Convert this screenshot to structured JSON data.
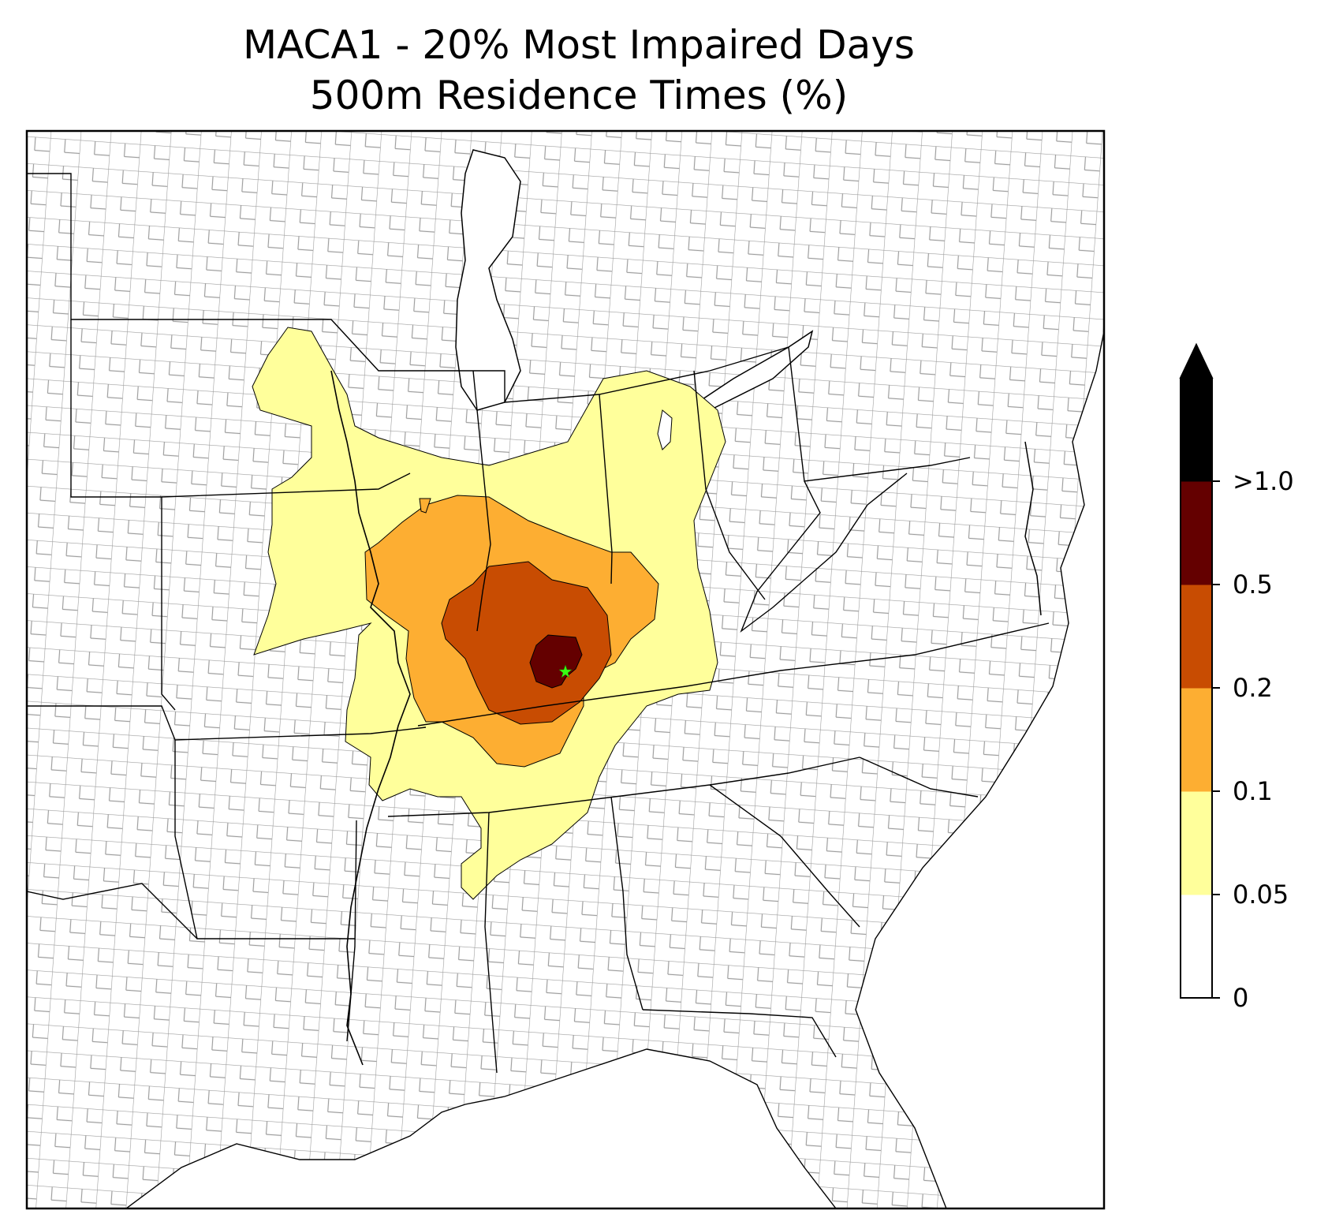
{
  "title": {
    "line1": "MACA1 - 20% Most Impaired Days",
    "line2": "500m Residence Times (%)"
  },
  "map": {
    "region": "Eastern United States with state and county boundaries",
    "source_marker": {
      "shape": "star",
      "color": "#39ff14"
    },
    "state_line_color": "#000000",
    "county_line_color": "#9e9e9e"
  },
  "colorbar": {
    "extend": "max",
    "levels": [
      {
        "label": "0",
        "value": 0
      },
      {
        "label": "0.05",
        "value": 0.05
      },
      {
        "label": "0.1",
        "value": 0.1
      },
      {
        "label": "0.2",
        "value": 0.2
      },
      {
        "label": "0.5",
        "value": 0.5
      },
      {
        "label": ">1.0",
        "value": 1.0
      }
    ],
    "colors": [
      "#ffffff",
      "#ffff9b",
      "#fdae32",
      "#c84c02",
      "#640000",
      "#000000"
    ]
  }
}
